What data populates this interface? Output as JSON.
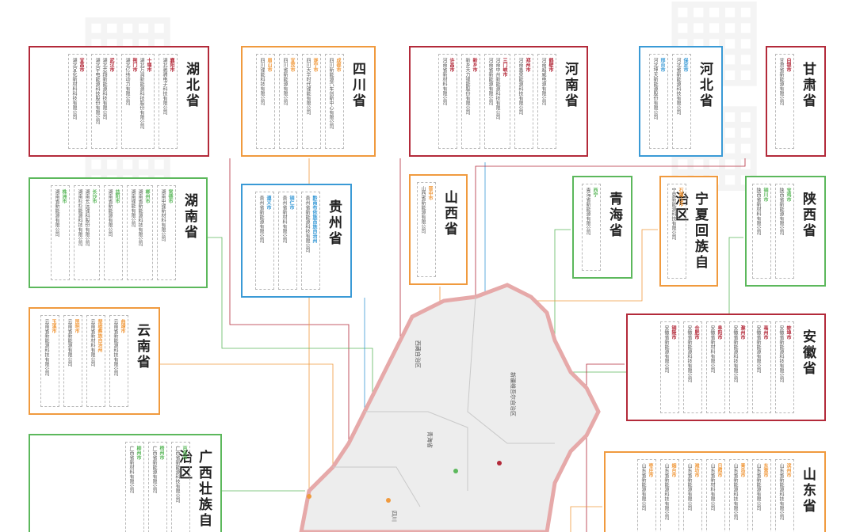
{
  "colors": {
    "red": "#b32a3a",
    "orange": "#f09a3e",
    "blue": "#3a9ad6",
    "green": "#5cb85c",
    "map_fill": "#ededed",
    "map_border": "#e6a9a9"
  },
  "map": {
    "labels": [
      "新疆维吾尔自治区",
      "西藏自治区",
      "青海省",
      "四川"
    ]
  },
  "provinces": [
    {
      "name": "湖北省",
      "columns": [
        {
          "city": "襄阳市",
          "companies": [
            "湖北驰骋电子科技有限公司"
          ]
        },
        {
          "city": "十堰市",
          "companies": [
            "湖北万润新能源科技股份有限公司"
          ],
          "city2": "荆门市",
          "companies2": [
            "湖北亿纬动力有限公司"
          ]
        },
        {
          "city": "武汉市",
          "companies": [
            "湖北芯翔新能源科技有限公司",
            "湖北宇电能源科技股份有限公司"
          ]
        },
        {
          "city": "宜昌市",
          "companies": [
            "湖北宜化新材料科技有限公司"
          ]
        }
      ]
    },
    {
      "name": "四川省",
      "columns": [
        {
          "city": "成都市",
          "companies": [
            "四川新能源汽车创新中心有限公司"
          ]
        },
        {
          "city": "遂宁市",
          "companies": [
            "四川天华时代锂能有限公司"
          ]
        },
        {
          "city": "宜宾市",
          "companies": [
            "四川省新能源有限公司"
          ]
        },
        {
          "city": "眉山市",
          "companies": [
            "四川锂能科技有限公司"
          ]
        }
      ]
    },
    {
      "name": "河南省",
      "columns": [
        {
          "city": "鹤壁市",
          "companies": [
            "河南超威电源有限公司"
          ]
        },
        {
          "city": "郑州市",
          "companies": [
            "河南鑫泉能源科技有限公司"
          ]
        },
        {
          "city": "三门峡市",
          "companies": [
            "河南中州新能源科技有限公司",
            "河南省新能源有限公司"
          ]
        },
        {
          "city": "新乡市",
          "companies": [
            "新乡天力锂能股份有限公司"
          ]
        },
        {
          "city": "许昌市",
          "companies": [
            "河南省新材料有限公司"
          ]
        }
      ]
    },
    {
      "name": "河北省",
      "columns": [
        {
          "city": "保定市",
          "companies": [
            "河北省新能源科技有限公司"
          ]
        },
        {
          "city": "邢台市",
          "companies": [
            "河北坤天新能源股份有限公司"
          ]
        }
      ]
    },
    {
      "name": "甘肃省",
      "columns": [
        {
          "city": "白银市",
          "companies": [
            "甘肃省新能源有限公司"
          ]
        }
      ]
    },
    {
      "name": "湖南省",
      "columns": [
        {
          "city": "常德市",
          "companies": [
            "湖南中锂新材料有限公司"
          ]
        },
        {
          "city": "郴州市",
          "companies": [
            "湖南省新能源科技有限公司",
            "湖南锂能有限公司"
          ]
        },
        {
          "city": "益阳市",
          "companies": [
            "湖南省新能源有限公司"
          ]
        },
        {
          "city": "长沙市",
          "companies": [
            "湖南长远锂科股份有限公司",
            "湖南杉杉能源科技有限公司"
          ]
        },
        {
          "city": "株洲市",
          "companies": [
            "湖南省新能源有限公司"
          ]
        }
      ]
    },
    {
      "name": "贵州省",
      "columns": [
        {
          "city": "黔南布依族苗族自治州",
          "companies": [
            "贵州省新能源科技有限公司"
          ]
        },
        {
          "city": "铜仁市",
          "companies": [
            "贵州省新材料有限公司"
          ]
        },
        {
          "city": "遵义市",
          "companies": [
            "贵州省新能源有限公司"
          ]
        }
      ]
    },
    {
      "name": "山西省",
      "columns": [
        {
          "city": "晋中市",
          "companies": [
            "山西省新能源有限公司"
          ]
        }
      ]
    },
    {
      "name": "青海省",
      "columns": [
        {
          "city": "西宁",
          "companies": [
            "青海省新能源有限公司"
          ]
        }
      ]
    },
    {
      "name": "宁夏回族自治区",
      "columns": [
        {
          "city": "石嘴山市",
          "companies": [
            "宁夏新能源科技有限公司"
          ]
        }
      ]
    },
    {
      "name": "陕西省",
      "columns": [
        {
          "city": "宝鸡市",
          "companies": [
            "陕西省新能源有限公司"
          ]
        },
        {
          "city": "铜川市",
          "companies": [
            "陕西省新材料有限公司"
          ]
        }
      ]
    },
    {
      "name": "云南省",
      "columns": [
        {
          "city": "曲靖市",
          "companies": [
            "云南省新能源科技有限公司"
          ]
        },
        {
          "city": "楚雄彝族自治州",
          "companies": [
            "云南省新材料有限公司"
          ]
        },
        {
          "city": "昆明市",
          "companies": [
            "云南省新能源有限公司"
          ]
        },
        {
          "city": "玉溪市",
          "companies": [
            "云南省新能源科技有限公司"
          ]
        }
      ]
    },
    {
      "name": "安徽省",
      "columns": [
        {
          "city": "蚌埠市",
          "companies": [
            "安徽省新能源科技有限公司"
          ]
        },
        {
          "city": "亳州市",
          "companies": [
            "安徽省新能源有限公司"
          ]
        },
        {
          "city": "滁州市",
          "companies": [
            "安徽省新能源科技有限公司"
          ]
        },
        {
          "city": "阜阳市",
          "companies": [
            "安徽省新材料有限公司"
          ]
        },
        {
          "city": "合肥市",
          "companies": [
            "安徽省新能源科技有限公司"
          ]
        },
        {
          "city": "铜陵市",
          "companies": [
            "安徽省新能源有限公司"
          ]
        }
      ]
    },
    {
      "name": "广西壮族自治区",
      "columns": [
        {
          "city": "百色市",
          "companies": [
            "广西省新能源科技有限公司"
          ]
        },
        {
          "city": "梧州市",
          "companies": [
            "广西省新能源有限公司"
          ]
        },
        {
          "city": "柳州市",
          "companies": [
            "广西省新材料有限公司"
          ]
        }
      ]
    },
    {
      "name": "山东省",
      "columns": [
        {
          "city": "滨州市",
          "companies": [
            "山东省新能源科技有限公司"
          ]
        },
        {
          "city": "东营市",
          "companies": [
            "山东省新能源有限公司"
          ]
        },
        {
          "city": "青岛市",
          "companies": [
            "山东省新能源科技有限公司"
          ]
        },
        {
          "city": "日照市",
          "companies": [
            "山东省新材料有限公司"
          ]
        },
        {
          "city": "潍坊市",
          "companies": [
            "山东省新能源有限公司"
          ]
        },
        {
          "city": "烟台市",
          "companies": [
            "山东省新能源科技有限公司"
          ]
        },
        {
          "city": "枣庄市",
          "companies": [
            "山东省新能源有限公司"
          ]
        }
      ]
    }
  ]
}
